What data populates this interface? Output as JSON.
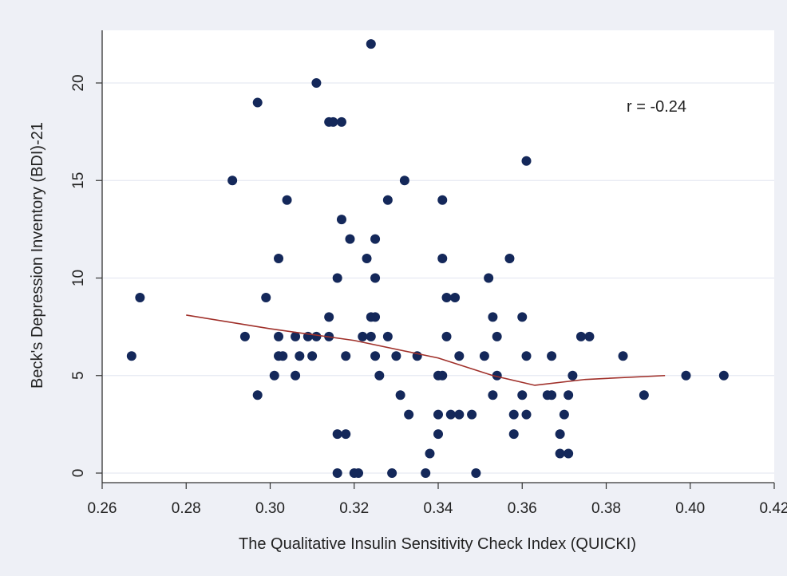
{
  "chart_data": {
    "type": "scatter",
    "xlabel": "The Qualitative Insulin Sensitivity Check Index (QUICKI)",
    "ylabel": "Beck's Depression Inventory (BDI)-21",
    "annotation": "r = -0.24",
    "xlim": [
      0.26,
      0.42
    ],
    "ylim": [
      0,
      22
    ],
    "x_ticks": [
      "0.26",
      "0.28",
      "0.30",
      "0.32",
      "0.34",
      "0.36",
      "0.38",
      "0.40",
      "0.42"
    ],
    "y_ticks": [
      "0",
      "5",
      "10",
      "15",
      "20"
    ],
    "grid": true,
    "colors": {
      "points": "#14285a",
      "fit_line": "#a0302a",
      "plot_bg": "#ffffff",
      "frame_bg": "#eef0f6",
      "grid": "#e6e9f2"
    },
    "series": [
      {
        "type": "scatter",
        "points": [
          [
            0.267,
            6
          ],
          [
            0.269,
            9
          ],
          [
            0.291,
            15
          ],
          [
            0.294,
            7
          ],
          [
            0.297,
            19
          ],
          [
            0.297,
            4
          ],
          [
            0.299,
            9
          ],
          [
            0.301,
            5
          ],
          [
            0.302,
            7
          ],
          [
            0.302,
            11
          ],
          [
            0.303,
            6
          ],
          [
            0.302,
            6
          ],
          [
            0.304,
            14
          ],
          [
            0.306,
            7
          ],
          [
            0.306,
            5
          ],
          [
            0.307,
            6
          ],
          [
            0.309,
            7
          ],
          [
            0.31,
            6
          ],
          [
            0.311,
            20
          ],
          [
            0.311,
            7
          ],
          [
            0.314,
            8
          ],
          [
            0.314,
            18
          ],
          [
            0.315,
            18
          ],
          [
            0.314,
            7
          ],
          [
            0.316,
            10
          ],
          [
            0.317,
            18
          ],
          [
            0.317,
            13
          ],
          [
            0.316,
            2
          ],
          [
            0.316,
            0
          ],
          [
            0.318,
            2
          ],
          [
            0.318,
            6
          ],
          [
            0.319,
            12
          ],
          [
            0.32,
            0
          ],
          [
            0.321,
            0
          ],
          [
            0.322,
            7
          ],
          [
            0.323,
            11
          ],
          [
            0.324,
            22
          ],
          [
            0.324,
            8
          ],
          [
            0.324,
            7
          ],
          [
            0.325,
            12
          ],
          [
            0.325,
            10
          ],
          [
            0.325,
            8
          ],
          [
            0.325,
            6
          ],
          [
            0.326,
            5
          ],
          [
            0.328,
            14
          ],
          [
            0.328,
            7
          ],
          [
            0.329,
            0
          ],
          [
            0.33,
            6
          ],
          [
            0.331,
            4
          ],
          [
            0.332,
            15
          ],
          [
            0.333,
            3
          ],
          [
            0.335,
            6
          ],
          [
            0.337,
            0
          ],
          [
            0.338,
            1
          ],
          [
            0.34,
            5
          ],
          [
            0.34,
            3
          ],
          [
            0.34,
            2
          ],
          [
            0.341,
            14
          ],
          [
            0.341,
            11
          ],
          [
            0.341,
            5
          ],
          [
            0.342,
            9
          ],
          [
            0.342,
            7
          ],
          [
            0.343,
            3
          ],
          [
            0.344,
            9
          ],
          [
            0.345,
            6
          ],
          [
            0.345,
            3
          ],
          [
            0.348,
            3
          ],
          [
            0.349,
            0
          ],
          [
            0.351,
            6
          ],
          [
            0.352,
            10
          ],
          [
            0.353,
            8
          ],
          [
            0.353,
            4
          ],
          [
            0.354,
            7
          ],
          [
            0.354,
            5
          ],
          [
            0.357,
            11
          ],
          [
            0.358,
            3
          ],
          [
            0.358,
            2
          ],
          [
            0.36,
            8
          ],
          [
            0.36,
            4
          ],
          [
            0.361,
            16
          ],
          [
            0.361,
            6
          ],
          [
            0.361,
            3
          ],
          [
            0.366,
            4
          ],
          [
            0.367,
            6
          ],
          [
            0.367,
            4
          ],
          [
            0.369,
            2
          ],
          [
            0.369,
            1
          ],
          [
            0.37,
            3
          ],
          [
            0.371,
            4
          ],
          [
            0.371,
            1
          ],
          [
            0.372,
            5
          ],
          [
            0.374,
            7
          ],
          [
            0.376,
            7
          ],
          [
            0.384,
            6
          ],
          [
            0.389,
            4
          ],
          [
            0.399,
            5
          ],
          [
            0.408,
            5
          ]
        ]
      },
      {
        "type": "line",
        "points": [
          [
            0.28,
            8.1
          ],
          [
            0.3,
            7.4
          ],
          [
            0.32,
            6.8
          ],
          [
            0.34,
            5.9
          ],
          [
            0.353,
            5.0
          ],
          [
            0.363,
            4.5
          ],
          [
            0.375,
            4.8
          ],
          [
            0.394,
            5.0
          ]
        ]
      }
    ]
  }
}
